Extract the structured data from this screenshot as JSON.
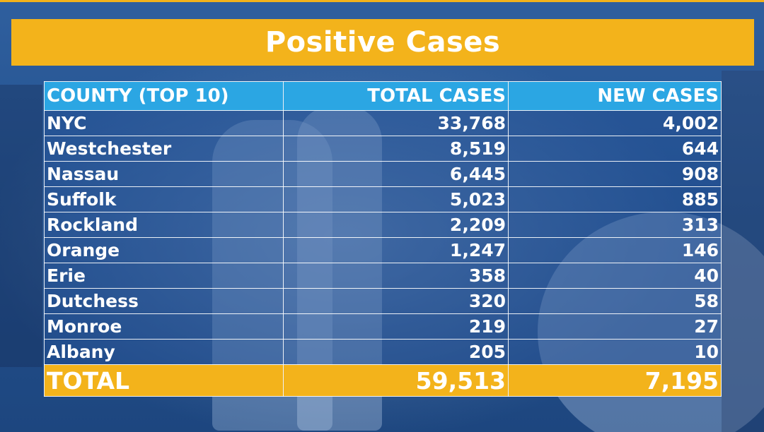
{
  "title": "Positive Cases",
  "columns": [
    "COUNTY (TOP 10)",
    "TOTAL CASES",
    "NEW CASES"
  ],
  "rows": [
    {
      "county": "NYC",
      "total": "33,768",
      "new": "4,002"
    },
    {
      "county": "Westchester",
      "total": "8,519",
      "new": "644"
    },
    {
      "county": "Nassau",
      "total": "6,445",
      "new": "908"
    },
    {
      "county": "Suffolk",
      "total": "5,023",
      "new": "885"
    },
    {
      "county": "Rockland",
      "total": "2,209",
      "new": "313"
    },
    {
      "county": "Orange",
      "total": "1,247",
      "new": "146"
    },
    {
      "county": "Erie",
      "total": "358",
      "new": "40"
    },
    {
      "county": "Dutchess",
      "total": "320",
      "new": "58"
    },
    {
      "county": "Monroe",
      "total": "219",
      "new": "27"
    },
    {
      "county": "Albany",
      "total": "205",
      "new": "10"
    }
  ],
  "total_row": {
    "label": "TOTAL",
    "total": "59,513",
    "new": "7,195"
  },
  "colors": {
    "banner": "#f3b31b",
    "header": "#2ba6e3",
    "text": "#ffffff",
    "background": "#2a5898"
  }
}
